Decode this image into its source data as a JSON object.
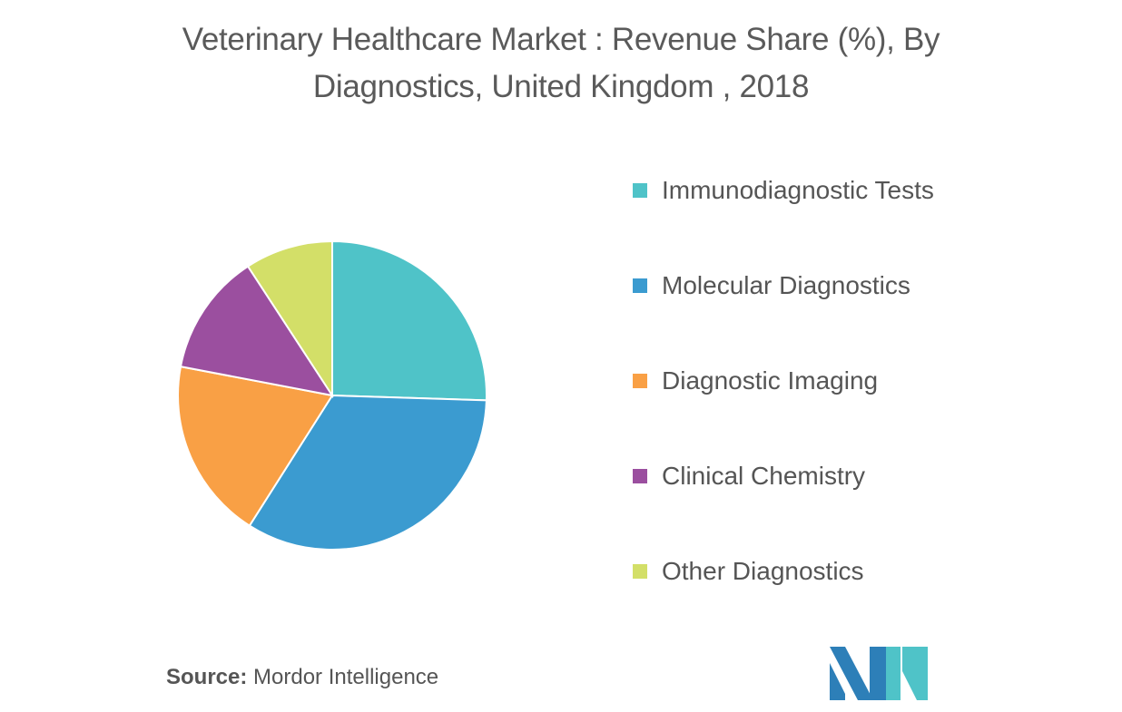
{
  "title": {
    "line1": "Veterinary Healthcare Market : Revenue Share (%), By",
    "line2": "Diagnostics, United Kingdom , 2018"
  },
  "chart_data": {
    "type": "pie",
    "title": "Veterinary Healthcare Market : Revenue Share (%), By Diagnostics, United Kingdom , 2018",
    "slices": [
      {
        "label": "Immunodiagnostic Tests",
        "value": 25.5,
        "color": "#4fc3c8"
      },
      {
        "label": "Molecular Diagnostics",
        "value": 33.5,
        "color": "#3b9bd0"
      },
      {
        "label": "Diagnostic Imaging",
        "value": 19.0,
        "color": "#f9a045"
      },
      {
        "label": "Clinical Chemistry",
        "value": 12.8,
        "color": "#9b4f9f"
      },
      {
        "label": "Other Diagnostics",
        "value": 9.2,
        "color": "#d3df68"
      }
    ],
    "start_angle": "12 o'clock",
    "direction": "clockwise",
    "legend_position": "right"
  },
  "source": {
    "label": "Source:",
    "text": "Mordor Intelligence"
  },
  "logo": {
    "name": "mordor-intelligence-logo",
    "colors": [
      "#2d7fb8",
      "#4fc3c8"
    ]
  }
}
